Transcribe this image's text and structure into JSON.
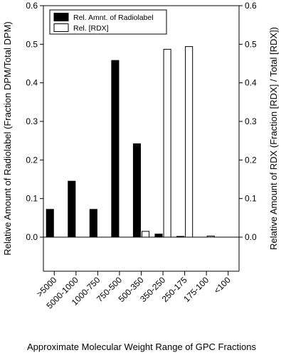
{
  "chart_data": {
    "type": "bar",
    "categories": [
      ">5000",
      "5000-1000",
      "1000-750",
      "750-500",
      "500-350",
      "350-250",
      "250-175",
      "175-100",
      "<100"
    ],
    "series": [
      {
        "name": "Rel. Amnt. of Radiolabel",
        "color": "#000000",
        "fill": "solid",
        "values": [
          0.072,
          0.145,
          0.072,
          0.458,
          0.242,
          0.008,
          0.002,
          0.0,
          0.0
        ]
      },
      {
        "name": "Rel. [RDX]",
        "color": "#ffffff",
        "fill": "outline",
        "values": [
          0.0,
          0.0,
          0.0,
          0.0,
          0.015,
          0.487,
          0.494,
          0.003,
          0.0
        ]
      }
    ],
    "xlabel": "Approximate Molecular Weight Range of GPC Fractions",
    "ylabel": "Relative Amount of Radiolabel (Fraction DPM/Total DPM)",
    "y2label": "Relative Amount of RDX (Fraction [RDX] / Total [RDX])",
    "ylim": [
      0.0,
      0.6
    ],
    "y2lim": [
      0.0,
      0.6
    ],
    "yticks": [
      "0.0",
      "0.1",
      "0.2",
      "0.3",
      "0.4",
      "0.5",
      "0.6"
    ],
    "y2ticks": [
      "0.0",
      "0.1",
      "0.2",
      "0.3",
      "0.4",
      "0.5",
      "0.6"
    ],
    "legend_position": "top-left",
    "grid": false
  }
}
